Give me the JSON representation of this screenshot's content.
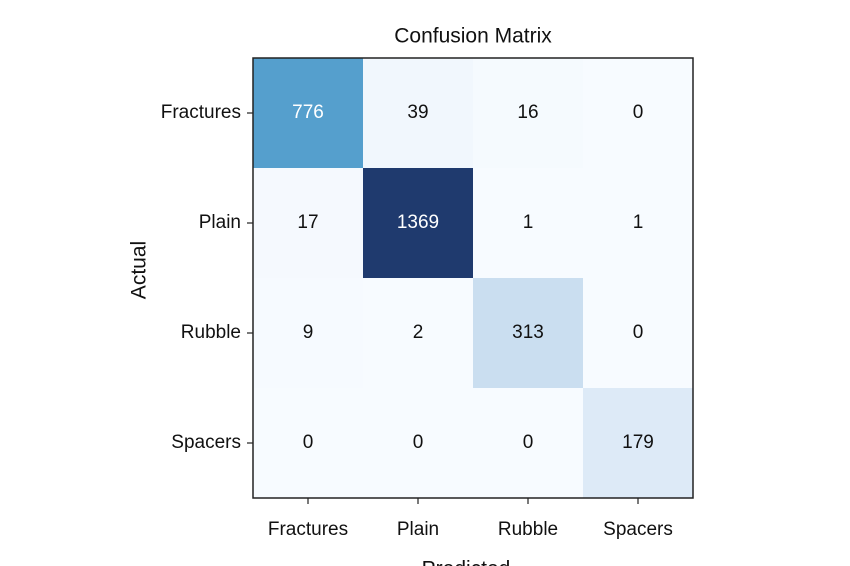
{
  "chart_data": {
    "type": "heatmap",
    "title": "Confusion Matrix",
    "xlabel": "Predicted",
    "ylabel": "Actual",
    "x_categories": [
      "Fractures",
      "Plain",
      "Rubble",
      "Spacers"
    ],
    "y_categories": [
      "Fractures",
      "Plain",
      "Rubble",
      "Spacers"
    ],
    "values": [
      [
        776,
        39,
        16,
        0
      ],
      [
        17,
        1369,
        1,
        1
      ],
      [
        9,
        2,
        313,
        0
      ],
      [
        0,
        0,
        0,
        179
      ]
    ],
    "colormap": [
      "#f7fbff",
      "#deebf7",
      "#c6dbef",
      "#9ecae1",
      "#6baed6",
      "#4292c6",
      "#2171b5",
      "#1c4a8a",
      "#1f3a6e"
    ]
  }
}
